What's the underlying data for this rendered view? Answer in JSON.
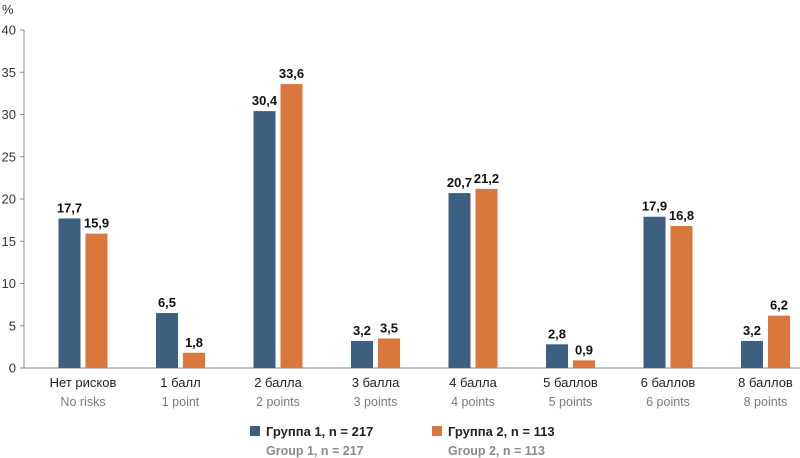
{
  "chart_data": {
    "type": "bar",
    "y_unit": "%",
    "ylim": [
      0,
      40
    ],
    "yticks": [
      0,
      5,
      10,
      15,
      20,
      25,
      30,
      35,
      40
    ],
    "grid": false,
    "categories": [
      "Нет рисков",
      "1 балл",
      "2 балла",
      "3 балла",
      "4 балла",
      "5 баллов",
      "6 баллов",
      "8 баллов"
    ],
    "categories_en": [
      "No risks",
      "1 point",
      "2 points",
      "3 points",
      "4 points",
      "5 points",
      "6 points",
      "8 points"
    ],
    "series": [
      {
        "name": "Группа 1, n = 217",
        "name_en": "Group 1, n = 217",
        "color": "#3d5f80",
        "values": [
          17.7,
          6.5,
          30.4,
          3.2,
          20.7,
          2.8,
          17.9,
          3.2
        ],
        "labels": [
          "17,7",
          "6,5",
          "30,4",
          "3,2",
          "20,7",
          "2,8",
          "17,9",
          "3,2"
        ]
      },
      {
        "name": "Группа 2, n = 113",
        "name_en": "Group 2, n = 113",
        "color": "#d9773d",
        "values": [
          15.9,
          1.8,
          33.6,
          3.5,
          21.2,
          0.9,
          16.8,
          6.2
        ],
        "labels": [
          "15,9",
          "1,8",
          "33,6",
          "3,5",
          "21,2",
          "0,9",
          "16,8",
          "6,2"
        ]
      }
    ],
    "legend_position": "bottom"
  }
}
